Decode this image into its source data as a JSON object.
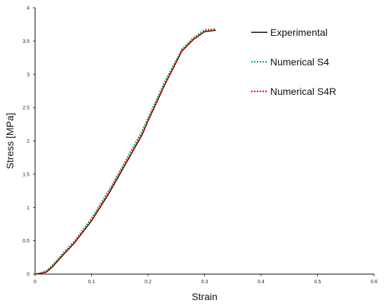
{
  "chart_data": {
    "type": "line",
    "title": "",
    "xlabel": "Strain",
    "ylabel": "Stress [MPa]",
    "xlim": [
      0,
      0.6
    ],
    "ylim": [
      0,
      4
    ],
    "x_ticks": [
      "0",
      "0.1",
      "0.2",
      "0.3",
      "0.4",
      "0.5",
      "0.6"
    ],
    "y_ticks": [
      "0",
      "0.5",
      "1",
      "1.5",
      "2",
      "2.5",
      "3",
      "3.5",
      "4"
    ],
    "grid": false,
    "legend_position": "top-right",
    "series": [
      {
        "name": "Experimental",
        "color": "#000000",
        "style": "solid",
        "x": [
          0,
          0.01,
          0.02,
          0.03,
          0.05,
          0.07,
          0.1,
          0.13,
          0.16,
          0.19,
          0.2,
          0.23,
          0.26,
          0.28,
          0.3,
          0.32
        ],
        "y": [
          0,
          0.01,
          0.03,
          0.1,
          0.29,
          0.47,
          0.8,
          1.2,
          1.65,
          2.1,
          2.3,
          2.85,
          3.35,
          3.52,
          3.64,
          3.66
        ]
      },
      {
        "name": "Numerical S4",
        "color": "#00b050",
        "style": "dotted",
        "x": [
          0,
          0.01,
          0.02,
          0.03,
          0.05,
          0.07,
          0.1,
          0.13,
          0.16,
          0.19,
          0.2,
          0.23,
          0.26,
          0.28,
          0.3,
          0.32
        ],
        "y": [
          0,
          0.02,
          0.05,
          0.13,
          0.32,
          0.5,
          0.84,
          1.25,
          1.7,
          2.16,
          2.35,
          2.9,
          3.38,
          3.55,
          3.67,
          3.68
        ]
      },
      {
        "name": "Numerical S4R",
        "color": "#ff0000",
        "style": "dotted",
        "x": [
          0,
          0.01,
          0.02,
          0.03,
          0.05,
          0.07,
          0.1,
          0.13,
          0.16,
          0.19,
          0.2,
          0.23,
          0.26,
          0.28,
          0.3,
          0.32
        ],
        "y": [
          0,
          0.01,
          0.04,
          0.11,
          0.3,
          0.48,
          0.81,
          1.22,
          1.67,
          2.12,
          2.31,
          2.86,
          3.36,
          3.53,
          3.65,
          3.67
        ]
      }
    ]
  }
}
